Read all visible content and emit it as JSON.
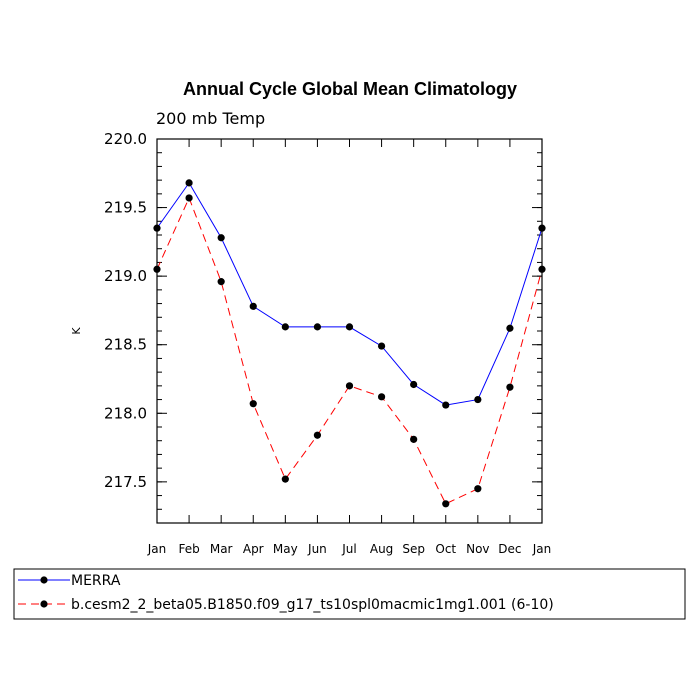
{
  "chart_data": {
    "type": "line",
    "title": "Annual Cycle Global Mean Climatology",
    "subtitle": "200 mb Temp",
    "ylabel": "K",
    "xlabel": "",
    "categories": [
      "Jan",
      "Feb",
      "Mar",
      "Apr",
      "May",
      "Jun",
      "Jul",
      "Aug",
      "Sep",
      "Oct",
      "Nov",
      "Dec",
      "Jan"
    ],
    "ylim": [
      217.2,
      220.0
    ],
    "yticks": [
      217.5,
      218.0,
      218.5,
      219.0,
      219.5,
      220.0
    ],
    "ytick_labels": [
      "217.5",
      "218.0",
      "218.5",
      "219.0",
      "219.5",
      "220.0"
    ],
    "grid": false,
    "legend_position": "bottom",
    "series": [
      {
        "name": "MERRA",
        "color": "#0000ff",
        "dash": "solid",
        "values": [
          219.35,
          219.68,
          219.28,
          218.78,
          218.63,
          218.63,
          218.63,
          218.49,
          218.21,
          218.06,
          218.1,
          218.62,
          219.35
        ]
      },
      {
        "name": "b.cesm2_2_beta05.B1850.f09_g17_ts10spl0macmic1mg1.001 (6-10)",
        "color": "#ff0000",
        "dash": "dashed",
        "values": [
          219.05,
          219.57,
          218.96,
          218.07,
          217.52,
          217.84,
          218.2,
          218.12,
          217.81,
          217.34,
          217.45,
          218.19,
          219.05
        ]
      }
    ]
  }
}
